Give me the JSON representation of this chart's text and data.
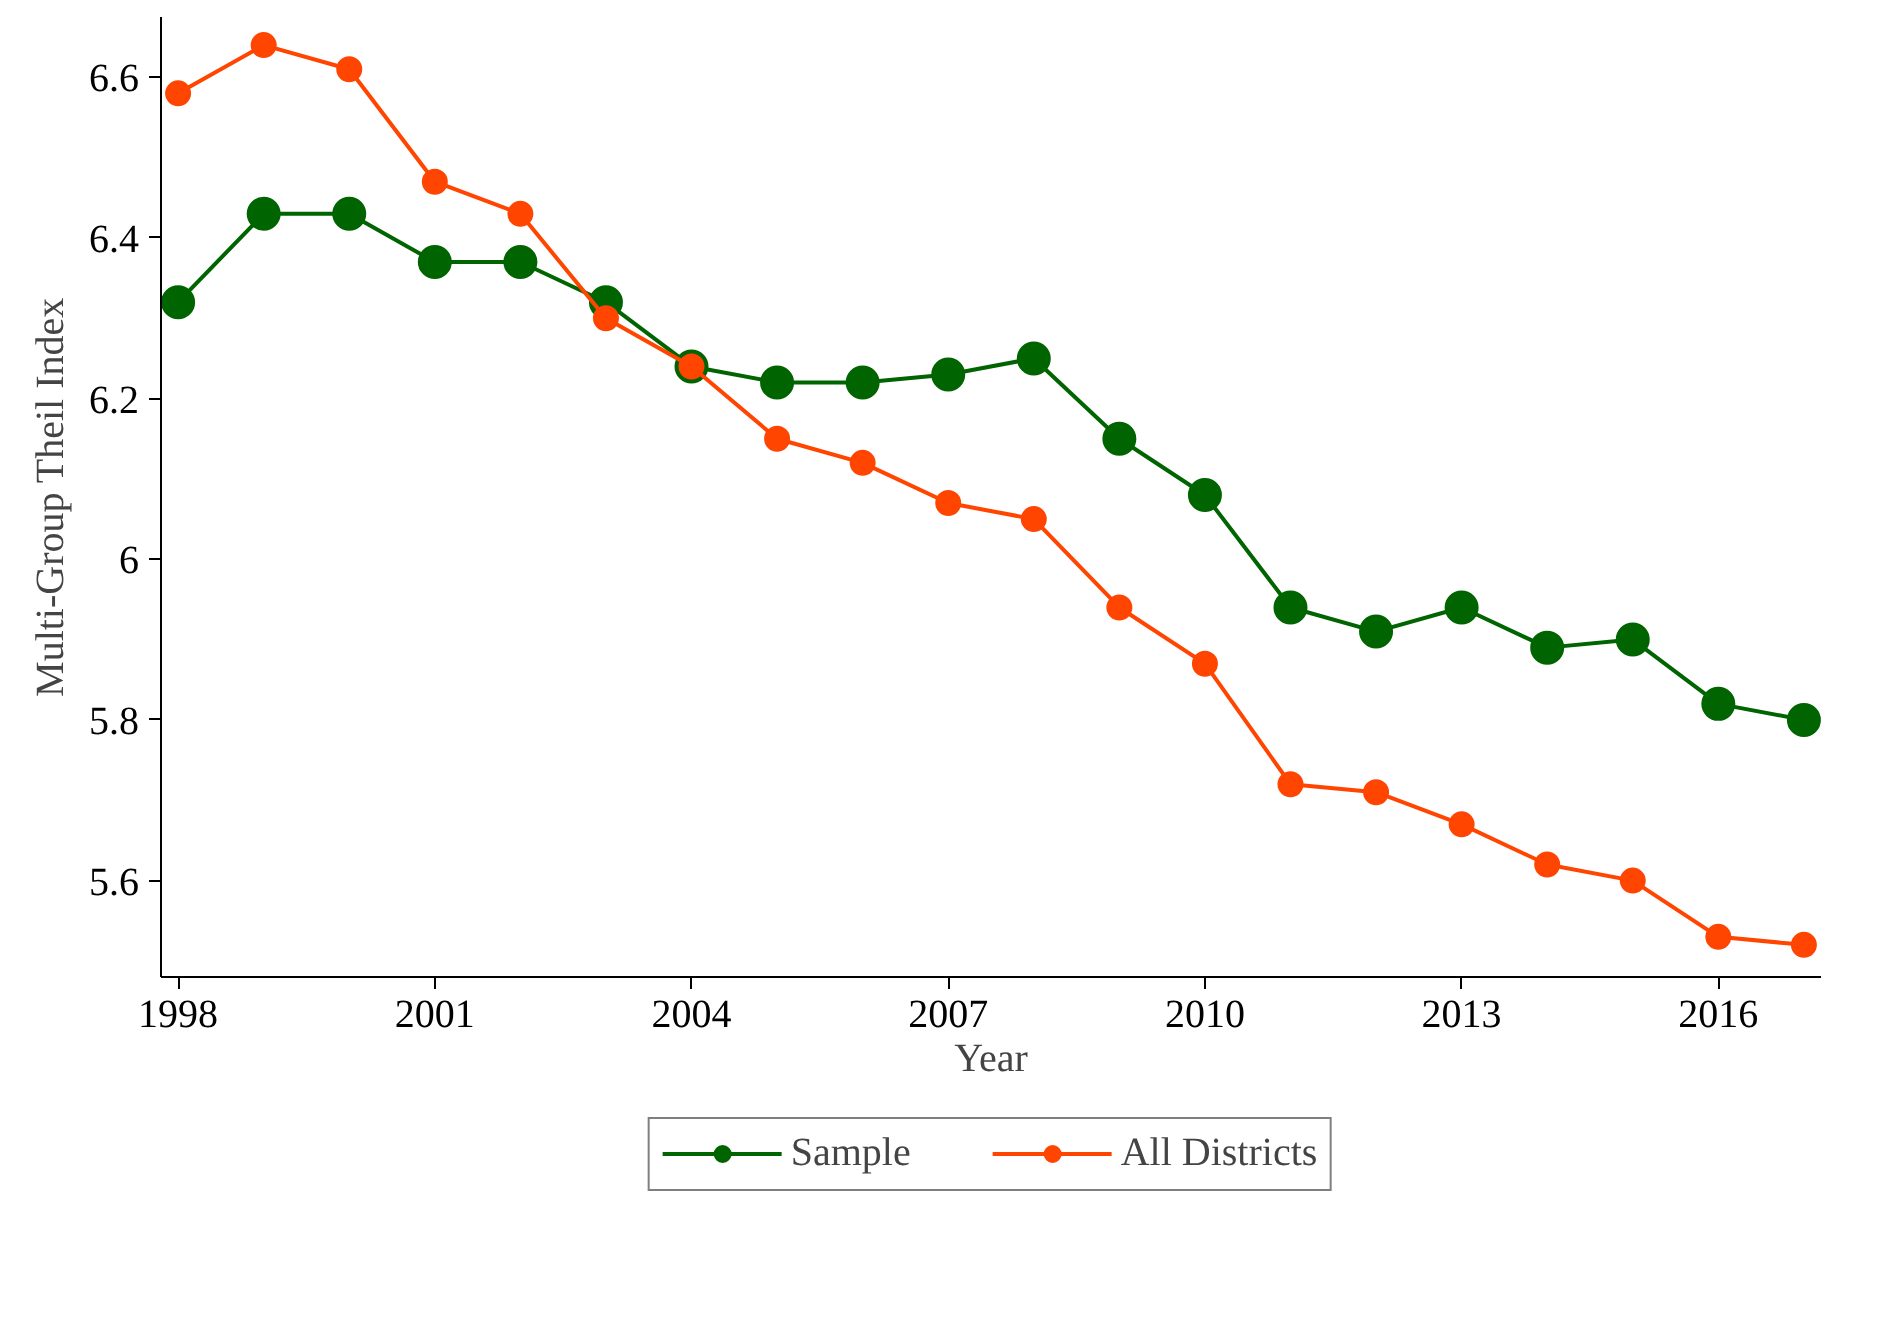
{
  "chart_data": {
    "type": "line",
    "xlabel": "Year",
    "ylabel": "Multi-Group Theil Index",
    "x": [
      1998,
      1999,
      2000,
      2001,
      2002,
      2003,
      2004,
      2005,
      2006,
      2007,
      2008,
      2009,
      2010,
      2011,
      2012,
      2013,
      2014,
      2015,
      2016,
      2017
    ],
    "series": [
      {
        "name": "Sample",
        "color": "#006400",
        "values": [
          6.32,
          6.43,
          6.43,
          6.37,
          6.37,
          6.32,
          6.24,
          6.22,
          6.22,
          6.23,
          6.25,
          6.15,
          6.08,
          5.94,
          5.91,
          5.94,
          5.89,
          5.9,
          5.82,
          5.8
        ]
      },
      {
        "name": "All Districts",
        "color": "#ff4500",
        "values": [
          6.58,
          6.64,
          6.61,
          6.47,
          6.43,
          6.3,
          6.24,
          6.15,
          6.12,
          6.07,
          6.05,
          5.94,
          5.87,
          5.72,
          5.71,
          5.67,
          5.62,
          5.6,
          5.53,
          5.52
        ]
      }
    ],
    "xlim": [
      1997.8,
      2017.2
    ],
    "ylim": [
      5.48,
      6.675
    ],
    "xticks": [
      1998,
      2001,
      2004,
      2007,
      2010,
      2013,
      2016
    ],
    "yticks": [
      5.6,
      5.8,
      {
        "value": 6,
        "label": "6"
      },
      6.2,
      6.4,
      6.6
    ],
    "grid": false,
    "legend": "bottom",
    "marker": "circle",
    "line_style": "solid"
  }
}
